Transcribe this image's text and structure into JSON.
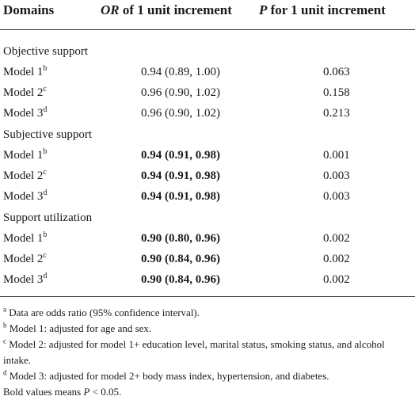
{
  "header": {
    "col1": "Domains",
    "col2_italic": "OR",
    "col2_rest": " of 1 unit increment",
    "col3_italic": "P",
    "col3_rest": " for 1 unit increment"
  },
  "groups": [
    {
      "title": "Objective support",
      "rows": [
        {
          "model": "Model 1",
          "sup": "b",
          "or": "0.94 (0.89, 1.00)",
          "p": "0.063",
          "bold": false
        },
        {
          "model": "Model 2",
          "sup": "c",
          "or": "0.96 (0.90, 1.02)",
          "p": "0.158",
          "bold": false
        },
        {
          "model": "Model 3",
          "sup": "d",
          "or": "0.96 (0.90, 1.02)",
          "p": "0.213",
          "bold": false
        }
      ]
    },
    {
      "title": "Subjective support",
      "rows": [
        {
          "model": "Model 1",
          "sup": "b",
          "or": "0.94 (0.91, 0.98)",
          "p": "0.001",
          "bold": true
        },
        {
          "model": "Model 2",
          "sup": "c",
          "or": "0.94 (0.91, 0.98)",
          "p": "0.003",
          "bold": true
        },
        {
          "model": "Model 3",
          "sup": "d",
          "or": "0.94 (0.91, 0.98)",
          "p": "0.003",
          "bold": true
        }
      ]
    },
    {
      "title": "Support utilization",
      "rows": [
        {
          "model": "Model 1",
          "sup": "b",
          "or": "0.90 (0.80, 0.96)",
          "p": "0.002",
          "bold": true
        },
        {
          "model": "Model 2",
          "sup": "c",
          "or": "0.90 (0.84, 0.96)",
          "p": "0.002",
          "bold": true
        },
        {
          "model": "Model 3",
          "sup": "d",
          "or": "0.90 (0.84, 0.96)",
          "p": "0.002",
          "bold": true
        }
      ]
    }
  ],
  "footnotes": {
    "a_mark": "a",
    "a_text": " Data are odds ratio (95% confidence interval).",
    "b_mark": "b",
    "b_text": " Model 1: adjusted for age and sex.",
    "c_mark": "c",
    "c_text": " Model 2: adjusted for model 1+ education level, marital status, smoking status, and alcohol intake.",
    "d_mark": "d",
    "d_text": " Model 3: adjusted for model 2+ body mass index, hypertension, and diabetes.",
    "bold_pre": "Bold values means ",
    "bold_italic": "P",
    "bold_post": " < 0.05."
  }
}
